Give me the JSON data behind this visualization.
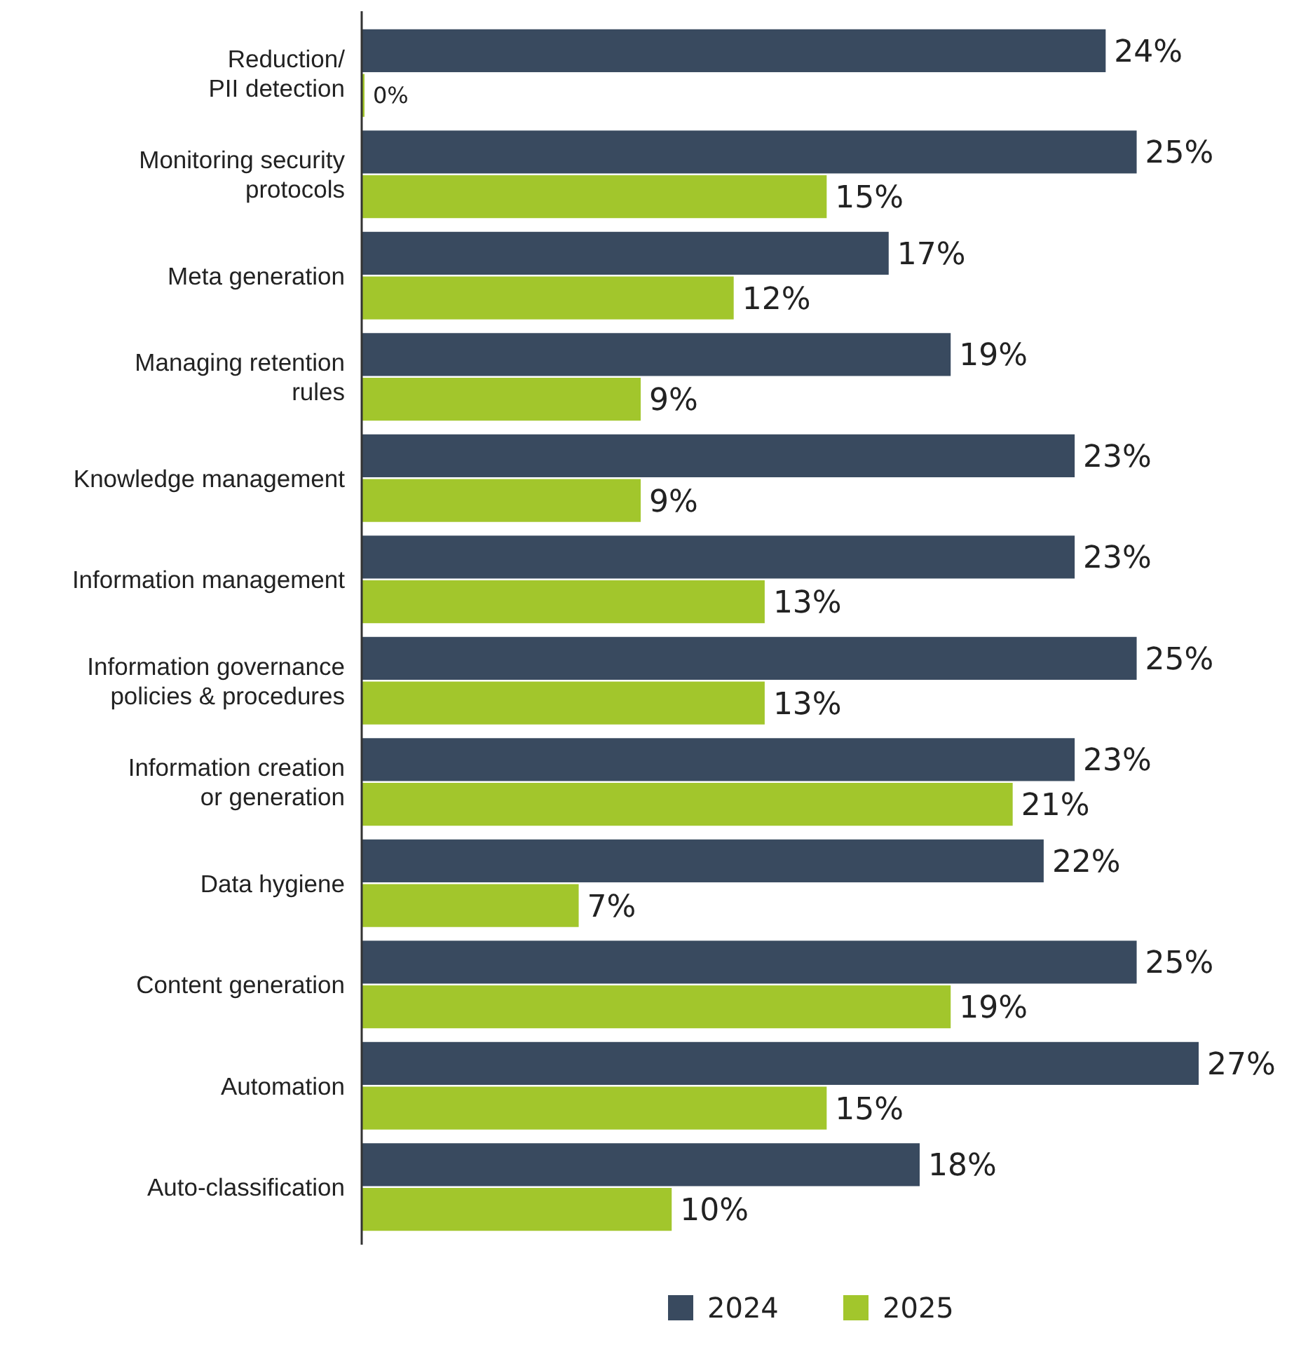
{
  "chart_data": {
    "type": "bar",
    "orientation": "horizontal",
    "legend": "bottom",
    "categories": [
      "Reduction/\nPII detection",
      "Monitoring security\nprotocols",
      "Meta generation",
      "Managing retention\nrules",
      "Knowledge management",
      "Information management",
      "Information governance\npolicies & procedures",
      "Information creation\nor generation",
      "Data hygiene",
      "Content generation",
      "Automation",
      "Auto-classification"
    ],
    "series": [
      {
        "name": "2024",
        "color": "#394a5f",
        "values": [
          24,
          25,
          17,
          19,
          23,
          23,
          25,
          23,
          22,
          25,
          27,
          18
        ],
        "value_labels": [
          "24%",
          "25%",
          "17%",
          "19%",
          "23%",
          "23%",
          "25%",
          "23%",
          "22%",
          "25%",
          "27%",
          "18%"
        ]
      },
      {
        "name": "2025",
        "color": "#a2c62c",
        "values": [
          0,
          15,
          12,
          9,
          9,
          13,
          13,
          21,
          7,
          19,
          15,
          10
        ],
        "value_labels": [
          "0%",
          "15%",
          "12%",
          "9%",
          "9%",
          "13%",
          "13%",
          "21%",
          "7%",
          "19%",
          "15%",
          "10%"
        ]
      }
    ]
  }
}
